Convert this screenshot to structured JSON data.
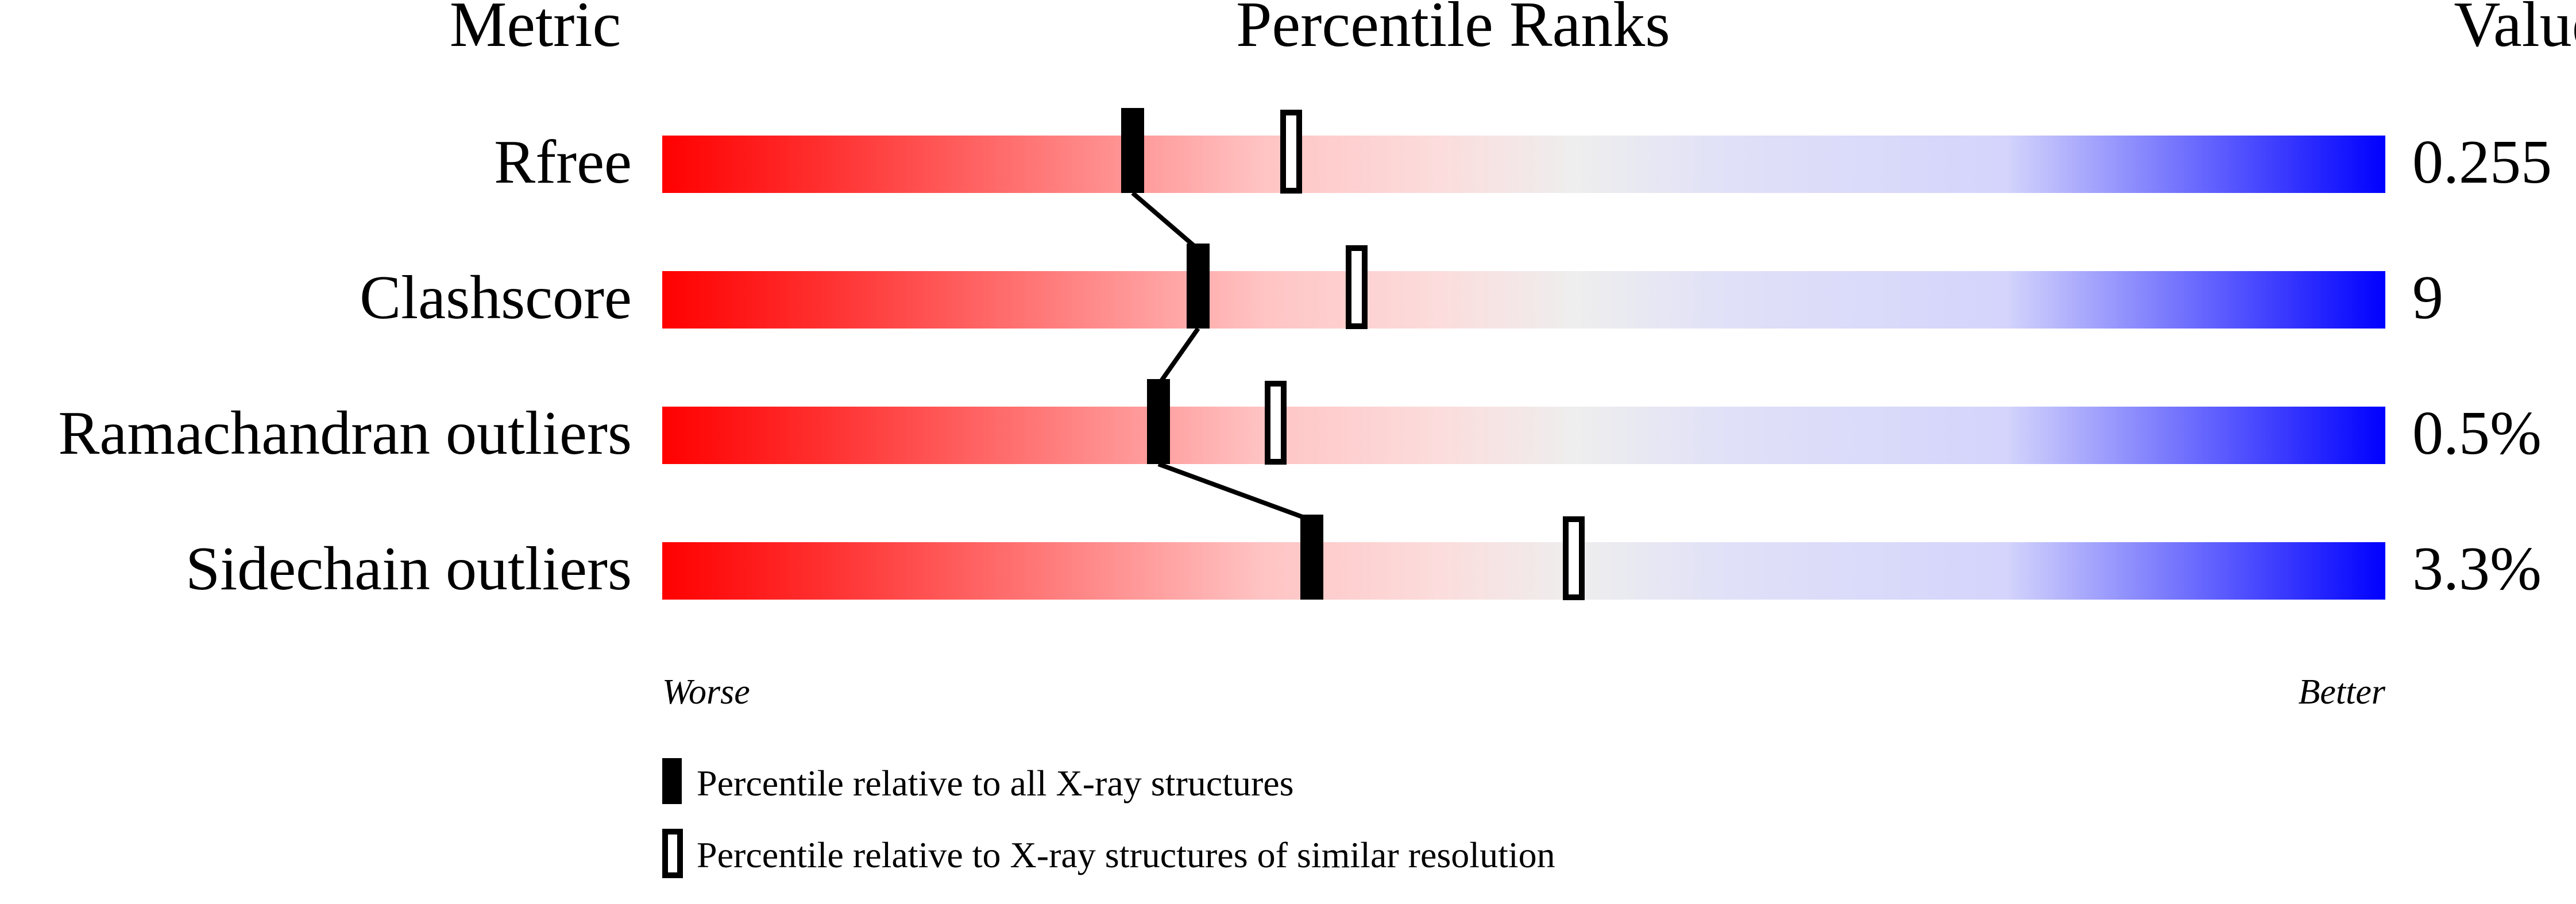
{
  "chart_data": {
    "type": "bar",
    "headers": {
      "metric": "Metric",
      "ranks": "Percentile Ranks",
      "value": "Value"
    },
    "xlim": [
      0,
      100
    ],
    "rows": [
      {
        "metric": "Rfree",
        "value": "0.255",
        "percentile_all": 27.3,
        "percentile_similar": 36.5
      },
      {
        "metric": "Clashscore",
        "value": "9",
        "percentile_all": 31.1,
        "percentile_similar": 40.3
      },
      {
        "metric": "Ramachandran outliers",
        "value": "0.5%",
        "percentile_all": 28.8,
        "percentile_similar": 35.6
      },
      {
        "metric": "Sidechain outliers",
        "value": "3.3%",
        "percentile_all": 37.7,
        "percentile_similar": 52.9
      }
    ],
    "axis": {
      "left_label": "Worse",
      "right_label": "Better"
    },
    "legend": [
      {
        "marker": "filled",
        "label": "Percentile relative to all X-ray structures"
      },
      {
        "marker": "open",
        "label": "Percentile relative to X-ray structures of similar resolution"
      }
    ],
    "colors": {
      "worse": "#ff0000",
      "middle": "#eeeeee",
      "better": "#0000ff"
    }
  }
}
